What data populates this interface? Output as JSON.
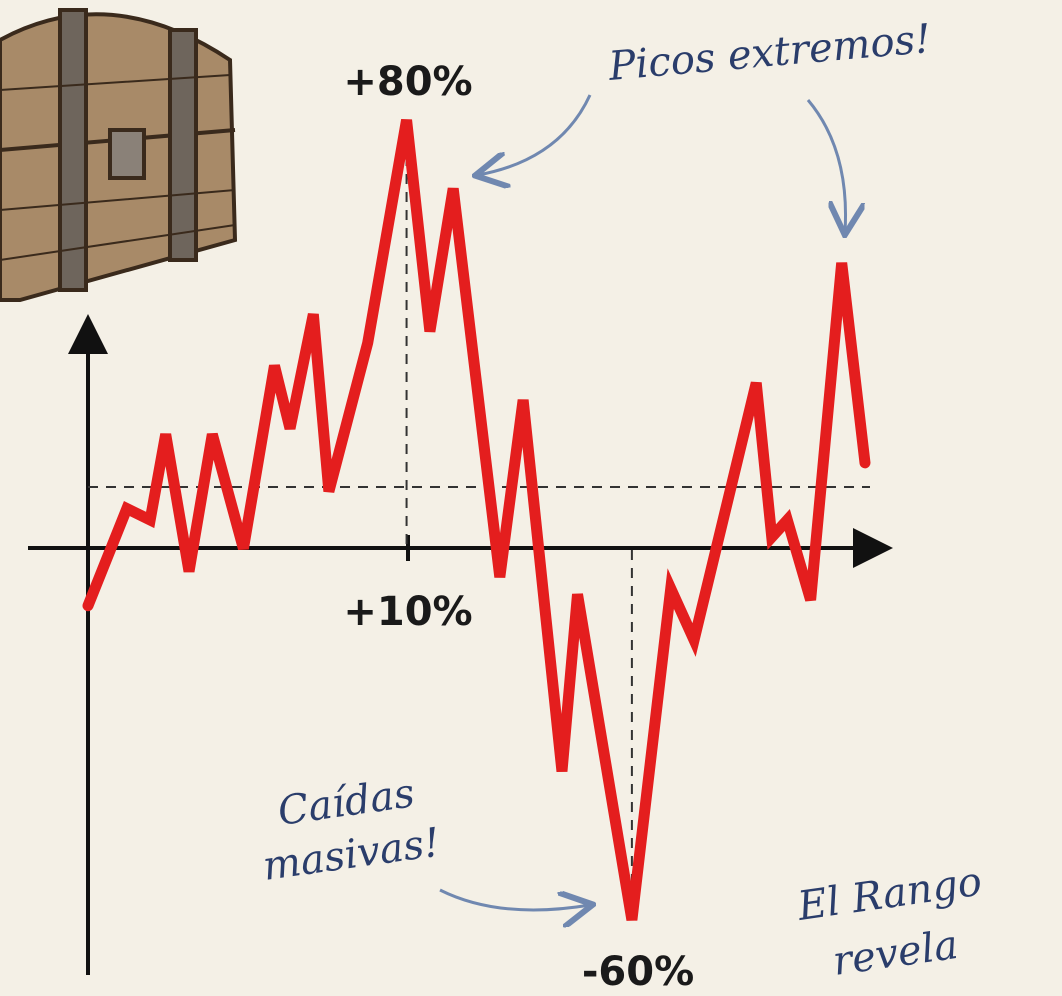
{
  "chart_data": {
    "type": "line",
    "x": [
      0,
      5,
      8,
      10,
      13,
      16,
      20,
      24,
      26,
      29,
      31,
      36,
      41,
      44,
      47,
      53,
      56,
      61,
      63,
      70,
      75,
      78,
      86,
      88,
      90,
      93,
      97,
      100
    ],
    "series": [
      {
        "color": "#e41e1e",
        "values": [
          -5,
          12,
          10,
          25,
          1,
          25,
          5,
          37,
          26,
          46,
          15,
          41,
          80,
          43,
          68,
          0,
          31,
          -34,
          -3,
          -60,
          -2,
          -11,
          34,
          7,
          10,
          -4,
          55,
          20
        ]
      }
    ],
    "xlim": [
      0,
      100
    ],
    "ylim": [
      -60,
      80
    ],
    "annotations": {
      "peak": "+80%",
      "middle": "+10%",
      "trough": "-60%",
      "spikes": "Picos extremos!",
      "drops_1": "Caídas",
      "drops_2": "masivas!",
      "range_1": "El Rango",
      "range_2": "revela"
    }
  }
}
